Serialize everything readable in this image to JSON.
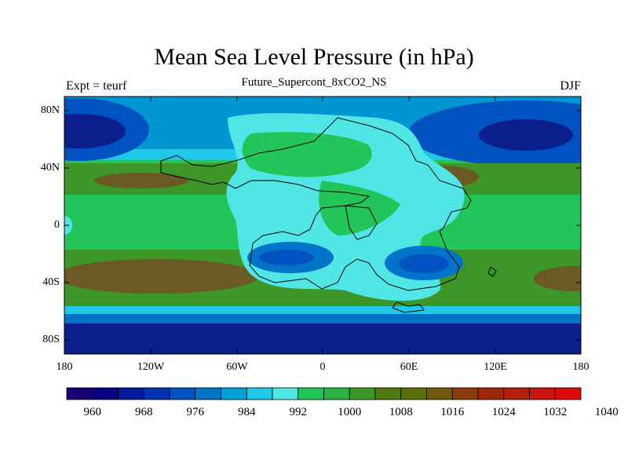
{
  "title": "Mean Sea Level Pressure (in hPa)",
  "subtitle": "Future_Supercont_8xCO2_NS",
  "left_label": "Expt = teurf",
  "right_label": "DJF",
  "map": {
    "lat_ticks": [
      "80N",
      "40N",
      "0",
      "40S",
      "80S"
    ],
    "lon_ticks": [
      "180",
      "120W",
      "60W",
      "0",
      "60E",
      "120E",
      "180"
    ],
    "lon_range": [
      -180,
      180
    ],
    "lat_range": [
      -90,
      90
    ],
    "projection": "cylindrical equidistant"
  },
  "colorbar": {
    "labels": [
      "960",
      "968",
      "976",
      "984",
      "992",
      "1000",
      "1008",
      "1016",
      "1024",
      "1032",
      "1040"
    ],
    "colors": [
      "#1a006e",
      "#0a0085",
      "#001a9e",
      "#0032b4",
      "#0052c0",
      "#0074c8",
      "#00a0d6",
      "#1ec8e6",
      "#50e6e6",
      "#22c55a",
      "#28b440",
      "#3c9628",
      "#507a10",
      "#5a6e0a",
      "#6e5a0a",
      "#8c3c0a",
      "#a0280a",
      "#b41e0a",
      "#c8140a",
      "#dc0a0a"
    ]
  },
  "palette": {
    "deep_low": "#0a1e8c",
    "low": "#0032b4",
    "mid_low": "#0096d2",
    "cyan": "#4ee6e6",
    "green": "#22c55a",
    "dark_green": "#3c9628",
    "olive": "#5a6a1a",
    "brown": "#6b5a24"
  }
}
